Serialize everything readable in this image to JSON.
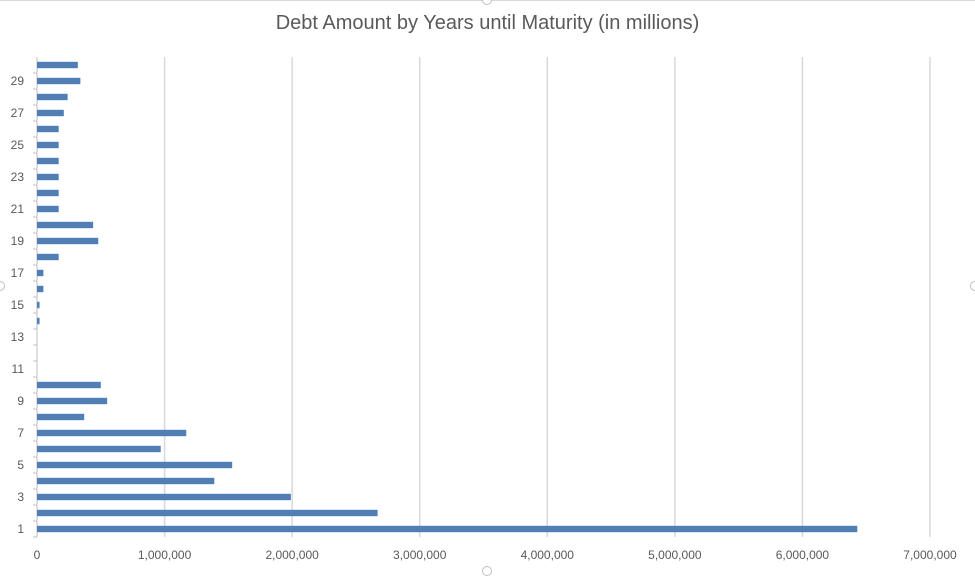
{
  "chart_data": {
    "type": "bar",
    "orientation": "horizontal",
    "title": "Debt Amount by Years until Maturity (in millions)",
    "xlabel": "",
    "ylabel": "",
    "categories": [
      "1",
      "2",
      "3",
      "4",
      "5",
      "6",
      "7",
      "8",
      "9",
      "10",
      "11",
      "12",
      "13",
      "14",
      "15",
      "16",
      "17",
      "18",
      "19",
      "20",
      "21",
      "22",
      "23",
      "24",
      "25",
      "26",
      "27",
      "28",
      "29",
      "30"
    ],
    "values": [
      6430000,
      2670000,
      1990000,
      1390000,
      1530000,
      970000,
      1170000,
      370000,
      550000,
      500000,
      0,
      0,
      0,
      20000,
      20000,
      50000,
      50000,
      170000,
      480000,
      440000,
      170000,
      170000,
      170000,
      170000,
      170000,
      170000,
      210000,
      240000,
      340000,
      320000
    ],
    "xlim": [
      0,
      7000000
    ],
    "xticks": [
      "0",
      "1,000,000",
      "2,000,000",
      "3,000,000",
      "4,000,000",
      "5,000,000",
      "6,000,000",
      "7,000,000"
    ],
    "yticks_labeled": [
      "1",
      "3",
      "5",
      "7",
      "9",
      "11",
      "13",
      "15",
      "17",
      "19",
      "21",
      "23",
      "25",
      "27",
      "29"
    ],
    "bar_color": "#4f7fb5",
    "grid": true,
    "grid_color": "#d9d9d9"
  }
}
